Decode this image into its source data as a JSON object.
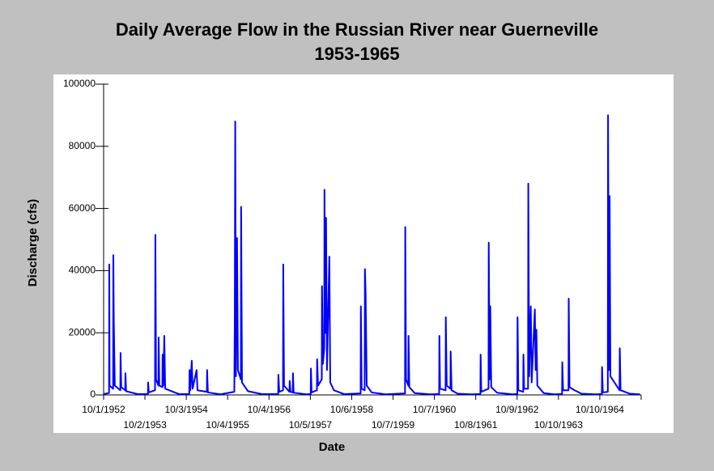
{
  "chart_data": {
    "type": "line",
    "title": "Daily Average Flow in the Russian River near Guerneville",
    "subtitle": "1953-1965",
    "x_label": "Date",
    "y_label": "Discharge (cfs)",
    "x": [
      "10/1/1952",
      "11/18/1952",
      "11/20/1952",
      "11/23/1952",
      "12/24/1952",
      "12/26/1952",
      "12/30/1952",
      "1/8/1953",
      "2/26/1953",
      "2/28/1953",
      "3/6/1953",
      "4/10/1953",
      "4/12/1953",
      "4/18/1953",
      "8/1/1953",
      "10/28/1953",
      "10/30/1953",
      "11/5/1953",
      "12/30/1953",
      "1/2/1954",
      "1/8/1954",
      "1/29/1954",
      "1/31/1954",
      "2/6/1954",
      "3/5/1954",
      "3/7/1954",
      "3/14/1954",
      "3/22/1954",
      "3/30/1954",
      "8/1/1954",
      "10/29/1954",
      "11/1/1954",
      "11/8/1954",
      "11/20/1954",
      "11/28/1954",
      "1/2/1955",
      "1/10/1955",
      "4/3/1955",
      "4/5/1955",
      "4/12/1955",
      "8/1/1955",
      "12/2/1955",
      "12/6/1955",
      "12/10/1955",
      "12/16/1955",
      "12/26/1955",
      "1/3/1956",
      "1/29/1956",
      "1/31/1956",
      "2/8/1956",
      "4/1/1956",
      "8/1/1956",
      "12/24/1956",
      "12/26/1956",
      "1/3/1957",
      "2/5/1957",
      "2/7/1957",
      "2/14/1957",
      "4/3/1957",
      "4/5/1957",
      "4/12/1957",
      "5/2/1957",
      "5/4/1957",
      "5/10/1957",
      "9/1/1957",
      "10/8/1957",
      "10/10/1957",
      "10/16/1957",
      "12/2/1957",
      "12/4/1957",
      "12/12/1957",
      "1/14/1958",
      "1/16/1958",
      "1/24/1958",
      "2/5/1958",
      "2/7/1958",
      "2/14/1958",
      "2/21/1958",
      "3/1/1958",
      "3/22/1958",
      "3/30/1958",
      "5/1/1958",
      "8/1/1958",
      "12/24/1958",
      "12/26/1958",
      "1/2/1959",
      "1/29/1959",
      "1/31/1959",
      "2/6/1959",
      "2/16/1959",
      "4/1/1959",
      "8/1/1959",
      "1/21/1960",
      "1/23/1960",
      "1/30/1960",
      "2/19/1960",
      "2/21/1960",
      "2/28/1960",
      "4/15/1960",
      "9/1/1960",
      "11/18/1960",
      "11/20/1960",
      "11/26/1960",
      "1/14/1961",
      "1/16/1961",
      "1/24/1961",
      "2/26/1961",
      "2/28/1961",
      "3/8/1961",
      "5/1/1961",
      "9/1/1961",
      "11/18/1961",
      "11/20/1961",
      "11/26/1961",
      "1/29/1962",
      "1/31/1962",
      "2/8/1962",
      "2/14/1962",
      "2/22/1962",
      "4/15/1962",
      "9/1/1962",
      "10/11/1962",
      "10/13/1962",
      "10/20/1962",
      "12/2/1962",
      "12/4/1962",
      "12/10/1962",
      "1/14/1963",
      "1/16/1963",
      "1/24/1963",
      "2/7/1963",
      "2/15/1963",
      "3/15/1963",
      "3/22/1963",
      "3/29/1963",
      "4/6/1963",
      "6/1/1963",
      "9/1/1963",
      "11/11/1963",
      "11/13/1963",
      "11/20/1963",
      "1/7/1964",
      "1/9/1964",
      "1/16/1964",
      "3/1/1964",
      "5/1/1964",
      "9/1/1964",
      "10/28/1964",
      "10/30/1964",
      "11/6/1964",
      "12/20/1964",
      "12/22/1964",
      "12/30/1964",
      "1/5/1965",
      "1/12/1965",
      "4/3/1965",
      "4/5/1965",
      "4/12/1965",
      "7/1/1965",
      "10/1/1965"
    ],
    "series": [
      {
        "name": "Discharge",
        "color": "#0000ff",
        "values": [
          300,
          600,
          42000,
          3000,
          2000,
          45000,
          24000,
          3000,
          1500,
          13500,
          2500,
          1500,
          7000,
          1200,
          250,
          300,
          4000,
          800,
          1500,
          51500,
          5000,
          3000,
          18500,
          3000,
          2500,
          13000,
          3000,
          19000,
          2000,
          250,
          300,
          8000,
          1500,
          11000,
          2000,
          8000,
          1500,
          1000,
          8000,
          800,
          200,
          1000,
          24000,
          88000,
          6000,
          50500,
          8000,
          5000,
          60500,
          4000,
          1200,
          250,
          300,
          6500,
          1000,
          1500,
          42000,
          3000,
          1000,
          4500,
          1000,
          800,
          7000,
          700,
          200,
          300,
          8500,
          800,
          1500,
          11500,
          3000,
          5000,
          35000,
          10000,
          15000,
          66000,
          20000,
          57000,
          8000,
          44500,
          4000,
          1500,
          250,
          500,
          28500,
          2000,
          1500,
          40500,
          33000,
          3000,
          800,
          200,
          500,
          54000,
          5000,
          3000,
          19000,
          2500,
          600,
          200,
          300,
          19000,
          2000,
          1500,
          25000,
          3000,
          2000,
          14000,
          1500,
          400,
          200,
          300,
          13000,
          1000,
          2000,
          49000,
          5000,
          28500,
          2500,
          700,
          200,
          300,
          25000,
          1500,
          1000,
          13000,
          2000,
          2000,
          68000,
          6000,
          28500,
          4000,
          27500,
          8000,
          21000,
          3000,
          600,
          200,
          300,
          10500,
          1500,
          1500,
          31000,
          2500,
          1500,
          400,
          200,
          300,
          9000,
          800,
          1000,
          90000,
          8000,
          64000,
          6000,
          1500,
          15000,
          1500,
          400,
          200
        ]
      }
    ],
    "xlim": [
      "10/1/1952",
      "10/11/1965"
    ],
    "xticks": [
      "10/1/1952",
      "10/2/1953",
      "10/3/1954",
      "10/4/1955",
      "10/4/1956",
      "10/5/1957",
      "10/6/1958",
      "10/7/1959",
      "10/7/1960",
      "10/8/1961",
      "10/9/1962",
      "10/10/1963",
      "10/10/1964"
    ],
    "ylim": [
      0,
      100000
    ],
    "yticks": [
      0,
      20000,
      40000,
      60000,
      80000,
      100000
    ]
  }
}
